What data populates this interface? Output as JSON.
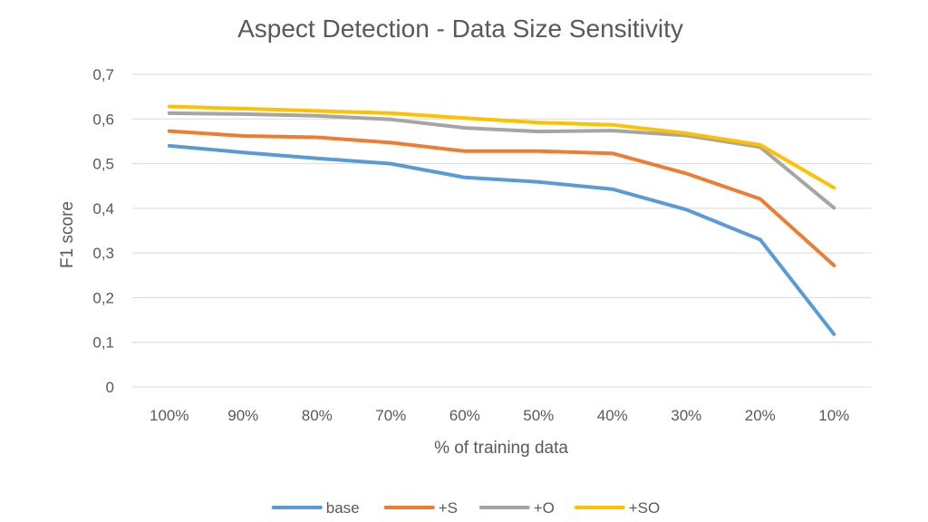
{
  "chart_data": {
    "type": "line",
    "title": "Aspect Detection - Data Size Sensitivity",
    "xlabel": "% of training data",
    "ylabel": "F1 score",
    "categories": [
      "100%",
      "90%",
      "80%",
      "70%",
      "60%",
      "50%",
      "40%",
      "30%",
      "20%",
      "10%"
    ],
    "ylim": [
      0,
      0.7
    ],
    "yticks": [
      0,
      0.1,
      0.2,
      0.3,
      0.4,
      0.5,
      0.6,
      0.7
    ],
    "ytick_labels": [
      "0",
      "0,1",
      "0,2",
      "0,3",
      "0,4",
      "0,5",
      "0,6",
      "0,7"
    ],
    "grid": true,
    "legend_position": "bottom",
    "series": [
      {
        "name": "base",
        "color": "#5b9bd5",
        "values": [
          0.54,
          0.525,
          0.512,
          0.5,
          0.469,
          0.459,
          0.443,
          0.397,
          0.33,
          0.118
        ]
      },
      {
        "name": "+S",
        "color": "#ed7d31",
        "values": [
          0.573,
          0.562,
          0.559,
          0.547,
          0.528,
          0.528,
          0.523,
          0.478,
          0.421,
          0.272
        ]
      },
      {
        "name": "+O",
        "color": "#a5a5a5",
        "values": [
          0.613,
          0.611,
          0.607,
          0.599,
          0.58,
          0.572,
          0.574,
          0.563,
          0.537,
          0.401
        ]
      },
      {
        "name": "+SO",
        "color": "#ffc000",
        "values": [
          0.628,
          0.623,
          0.618,
          0.613,
          0.602,
          0.592,
          0.587,
          0.568,
          0.542,
          0.446
        ]
      }
    ]
  }
}
